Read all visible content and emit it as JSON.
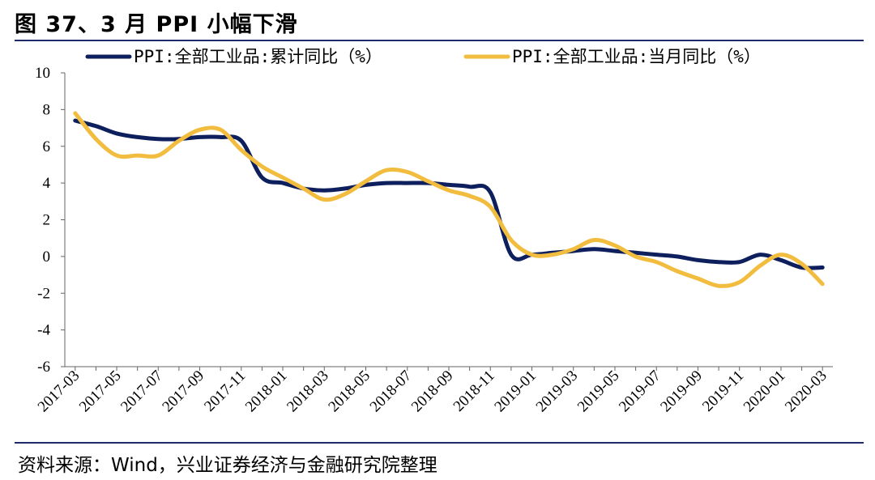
{
  "header": {
    "title": "图 37、3 月 PPI 小幅下滑"
  },
  "footer": {
    "source": "资料来源：Wind，兴业证券经济与金融研究院整理"
  },
  "colors": {
    "cumulative": "#0d1f5c",
    "monthly": "#f2bd3f",
    "rule": "#1f2a6b"
  },
  "chart_data": {
    "type": "line",
    "title": "图 37、3 月 PPI 小幅下滑",
    "ylim": [
      -6,
      10
    ],
    "yticks": [
      "10",
      "8",
      "6",
      "4",
      "2",
      "0",
      "-2",
      "-4",
      "-6"
    ],
    "legend_position": "top",
    "x": [
      "2017-03",
      "2017-04",
      "2017-05",
      "2017-06",
      "2017-07",
      "2017-08",
      "2017-09",
      "2017-10",
      "2017-11",
      "2017-12",
      "2018-01",
      "2018-02",
      "2018-03",
      "2018-04",
      "2018-05",
      "2018-06",
      "2018-07",
      "2018-08",
      "2018-09",
      "2018-10",
      "2018-11",
      "2018-12",
      "2019-01",
      "2019-02",
      "2019-03",
      "2019-04",
      "2019-05",
      "2019-06",
      "2019-07",
      "2019-08",
      "2019-09",
      "2019-10",
      "2019-11",
      "2019-12",
      "2020-01",
      "2020-02",
      "2020-03"
    ],
    "xtick_labels": [
      "2017-03",
      "2017-05",
      "2017-07",
      "2017-09",
      "2017-11",
      "2018-01",
      "2018-03",
      "2018-05",
      "2018-07",
      "2018-09",
      "2018-11",
      "2019-01",
      "2019-03",
      "2019-05",
      "2019-07",
      "2019-09",
      "2019-11",
      "2020-01",
      "2020-03"
    ],
    "series": [
      {
        "name": "PPI:全部工业品:累计同比（%）",
        "key": "cumulative",
        "values": [
          7.4,
          7.1,
          6.7,
          6.5,
          6.4,
          6.4,
          6.5,
          6.5,
          6.3,
          4.3,
          4.0,
          3.7,
          3.6,
          3.7,
          3.9,
          4.0,
          4.0,
          4.0,
          3.9,
          3.8,
          3.5,
          0.1,
          0.1,
          0.2,
          0.3,
          0.4,
          0.3,
          0.2,
          0.1,
          0.0,
          -0.2,
          -0.3,
          -0.3,
          0.1,
          -0.2,
          -0.6,
          -0.6
        ]
      },
      {
        "name": "PPI:全部工业品:当月同比（%）",
        "key": "monthly",
        "values": [
          7.8,
          6.4,
          5.5,
          5.5,
          5.5,
          6.3,
          6.9,
          6.9,
          5.8,
          4.9,
          4.3,
          3.7,
          3.1,
          3.4,
          4.1,
          4.7,
          4.6,
          4.1,
          3.6,
          3.3,
          2.7,
          0.9,
          0.1,
          0.1,
          0.4,
          0.9,
          0.6,
          0.0,
          -0.3,
          -0.8,
          -1.2,
          -1.6,
          -1.4,
          -0.5,
          0.1,
          -0.4,
          -1.5
        ]
      }
    ]
  }
}
